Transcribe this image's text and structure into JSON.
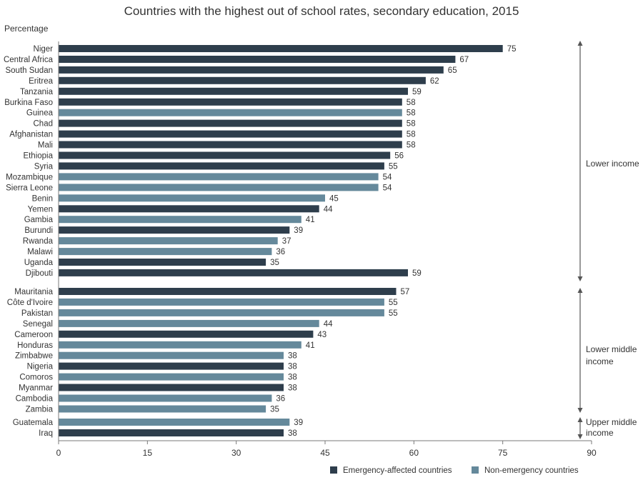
{
  "chart_data": {
    "type": "bar",
    "orientation": "horizontal",
    "title": "Countries with the highest out of school rates, secondary education, 2015",
    "ylabel": "Percentage",
    "xlabel": "",
    "xlim": [
      0,
      90
    ],
    "xticks": [
      0,
      15,
      30,
      45,
      60,
      75,
      90
    ],
    "grid": false,
    "legend_position": "bottom-right",
    "colors": {
      "emergency": "#2e3e4c",
      "non_emergency": "#65899b",
      "axis": "#7a7a7a",
      "text": "#333333"
    },
    "series": [
      {
        "key": "emergency",
        "name": "Emergency-affected countries"
      },
      {
        "key": "non_emergency",
        "name": "Non-emergency countries"
      }
    ],
    "groups": [
      {
        "label": "Lower income",
        "items": [
          {
            "country": "Niger",
            "value": 75,
            "series": "emergency"
          },
          {
            "country": "Central Africa",
            "value": 67,
            "series": "emergency"
          },
          {
            "country": "South Sudan",
            "value": 65,
            "series": "emergency"
          },
          {
            "country": "Eritrea",
            "value": 62,
            "series": "emergency"
          },
          {
            "country": "Tanzania",
            "value": 59,
            "series": "emergency"
          },
          {
            "country": "Burkina Faso",
            "value": 58,
            "series": "emergency"
          },
          {
            "country": "Guinea",
            "value": 58,
            "series": "non_emergency"
          },
          {
            "country": "Chad",
            "value": 58,
            "series": "emergency"
          },
          {
            "country": "Afghanistan",
            "value": 58,
            "series": "emergency"
          },
          {
            "country": "Mali",
            "value": 58,
            "series": "emergency"
          },
          {
            "country": "Ethiopia",
            "value": 56,
            "series": "emergency"
          },
          {
            "country": "Syria",
            "value": 55,
            "series": "emergency"
          },
          {
            "country": "Mozambique",
            "value": 54,
            "series": "non_emergency"
          },
          {
            "country": "Sierra Leone",
            "value": 54,
            "series": "non_emergency"
          },
          {
            "country": "Benin",
            "value": 45,
            "series": "non_emergency"
          },
          {
            "country": "Yemen",
            "value": 44,
            "series": "emergency"
          },
          {
            "country": "Gambia",
            "value": 41,
            "series": "non_emergency"
          },
          {
            "country": "Burundi",
            "value": 39,
            "series": "emergency"
          },
          {
            "country": "Rwanda",
            "value": 37,
            "series": "non_emergency"
          },
          {
            "country": "Malawi",
            "value": 36,
            "series": "non_emergency"
          },
          {
            "country": "Uganda",
            "value": 35,
            "series": "emergency"
          },
          {
            "country": "Djibouti",
            "value": 59,
            "series": "emergency"
          }
        ]
      },
      {
        "label": "Lower middle income",
        "items": [
          {
            "country": "Mauritania",
            "value": 57,
            "series": "emergency"
          },
          {
            "country": "Côte d'Ivoire",
            "value": 55,
            "series": "non_emergency"
          },
          {
            "country": "Pakistan",
            "value": 55,
            "series": "non_emergency"
          },
          {
            "country": "Senegal",
            "value": 44,
            "series": "non_emergency"
          },
          {
            "country": "Cameroon",
            "value": 43,
            "series": "emergency"
          },
          {
            "country": "Honduras",
            "value": 41,
            "series": "non_emergency"
          },
          {
            "country": "Zimbabwe",
            "value": 38,
            "series": "non_emergency"
          },
          {
            "country": "Nigeria",
            "value": 38,
            "series": "emergency"
          },
          {
            "country": "Comoros",
            "value": 38,
            "series": "non_emergency"
          },
          {
            "country": "Myanmar",
            "value": 38,
            "series": "emergency"
          },
          {
            "country": "Cambodia",
            "value": 36,
            "series": "non_emergency"
          },
          {
            "country": "Zambia",
            "value": 35,
            "series": "non_emergency"
          }
        ]
      },
      {
        "label": "Upper middle income",
        "items": [
          {
            "country": "Guatemala",
            "value": 39,
            "series": "non_emergency"
          },
          {
            "country": "Iraq",
            "value": 38,
            "series": "emergency"
          }
        ]
      }
    ]
  }
}
